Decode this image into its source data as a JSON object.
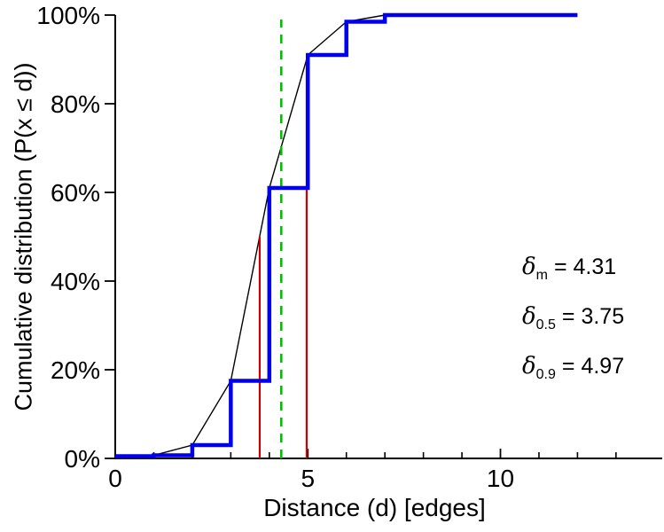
{
  "figure": {
    "x_label": "Distance (d) [edges]",
    "y_label": "Cumulative distribution (P(x ≤ d))"
  },
  "stats": [
    {
      "symbol": "δ",
      "subscript": "m",
      "value": "= 4.31"
    },
    {
      "symbol": "δ",
      "subscript": "0.5",
      "value": "= 3.75"
    },
    {
      "symbol": "δ",
      "subscript": "0.9",
      "value": "= 4.97"
    }
  ],
  "chart_data": {
    "type": "line",
    "title": "",
    "xlabel": "Distance (d) [edges]",
    "ylabel": "Cumulative distribution (P(x ≤ d))",
    "xlim": [
      0,
      14.2
    ],
    "ylim": [
      0,
      100
    ],
    "grid": false,
    "legend": "none",
    "x_major_ticks": [
      {
        "value": 0,
        "label": "0"
      },
      {
        "value": 5,
        "label": "5"
      },
      {
        "value": 10,
        "label": "10"
      }
    ],
    "x_minor_ticks": [
      1,
      2,
      3,
      4,
      6,
      7,
      8,
      9,
      11,
      12,
      13
    ],
    "y_major_ticks": [
      {
        "value": 0,
        "label": "0%"
      },
      {
        "value": 20,
        "label": "20%"
      },
      {
        "value": 40,
        "label": "40%"
      },
      {
        "value": 60,
        "label": "60%"
      },
      {
        "value": 80,
        "label": "80%"
      },
      {
        "value": 100,
        "label": "100%"
      }
    ],
    "series": [
      {
        "name": "empirical-distance-cdf-step",
        "style": "step",
        "color": "#0000ee",
        "width": 4.5,
        "x": [
          0,
          1,
          2,
          3,
          4,
          5,
          6,
          7,
          8,
          9,
          10,
          11,
          12
        ],
        "y": [
          0.5,
          0.7,
          3,
          17.5,
          61,
          91,
          98.5,
          100,
          100,
          100,
          100,
          100,
          100
        ]
      },
      {
        "name": "interpolated-cdf-line",
        "style": "line",
        "color": "#000000",
        "width": 1.4,
        "x": [
          0,
          1,
          2,
          3,
          4,
          5,
          6,
          7,
          8
        ],
        "y": [
          0.5,
          0.7,
          3,
          17.5,
          61,
          91,
          98.5,
          100,
          100
        ]
      }
    ],
    "vertical_lines": [
      {
        "name": "median-distance-line",
        "x": 3.75,
        "y_from": 0,
        "y_to": 50,
        "color": "#cc0000",
        "width": 2.2,
        "dash": ""
      },
      {
        "name": "p90-distance-line",
        "x": 4.97,
        "y_from": 0,
        "y_to": 90,
        "color": "#cc0000",
        "width": 2.2,
        "dash": ""
      },
      {
        "name": "mean-distance-line",
        "x": 4.31,
        "y_from": 0,
        "y_to": 99,
        "color": "#00c000",
        "width": 2.6,
        "dash": "10,8"
      }
    ],
    "annotations": [
      "δ_m = 4.31",
      "δ_0.5 = 3.75",
      "δ_0.9 = 4.97"
    ]
  }
}
